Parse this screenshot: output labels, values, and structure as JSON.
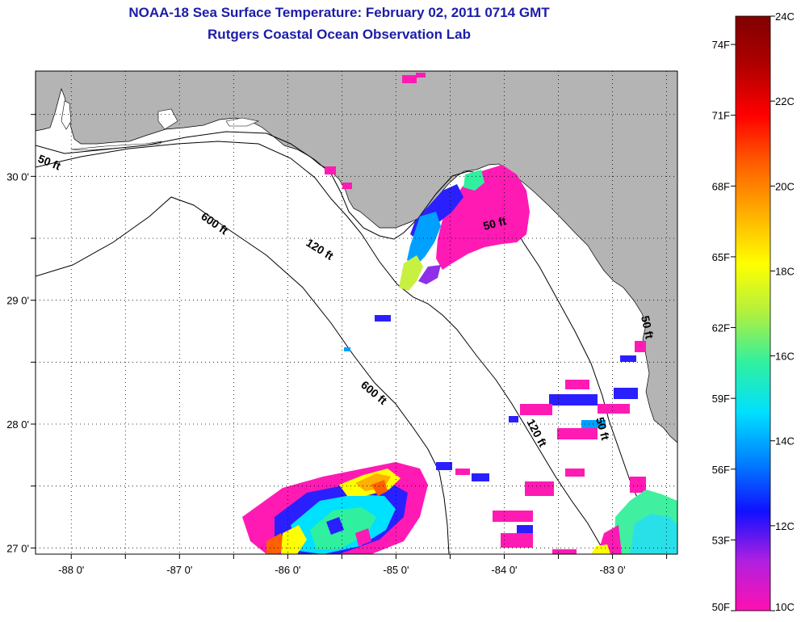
{
  "header": {
    "title": "NOAA-18 Sea Surface Temperature:  February 02, 2011 0714 GMT",
    "subtitle": "Rutgers Coastal Ocean Observation Lab"
  },
  "map": {
    "lon_range": [
      -88.33,
      -82.4
    ],
    "lat_range": [
      26.95,
      30.85
    ],
    "lon_ticks": [
      {
        "value": -88,
        "label": "-88 0'"
      },
      {
        "value": -87,
        "label": "-87 0'"
      },
      {
        "value": -86,
        "label": "-86 0'"
      },
      {
        "value": -85,
        "label": "-85 0'"
      },
      {
        "value": -84,
        "label": "-84 0'"
      },
      {
        "value": -83,
        "label": "-83 0'"
      }
    ],
    "lat_ticks": [
      {
        "value": 30,
        "label": "30 0'"
      },
      {
        "value": 29,
        "label": "29 0'"
      },
      {
        "value": 28,
        "label": "28 0'"
      },
      {
        "value": 27,
        "label": "27 0'"
      }
    ],
    "grid": "dotted",
    "land_color": "#b4b4b4",
    "depth_labels": [
      "50 ft",
      "600 ft",
      "120 ft",
      "50 ft",
      "600 ft",
      "120 ft",
      "50 ft",
      "50 ft"
    ]
  },
  "colorbar": {
    "min_c": 10,
    "max_c": 24,
    "celsius_labels": [
      "24C",
      "22C",
      "20C",
      "18C",
      "16C",
      "14C",
      "12C",
      "10C"
    ],
    "fahrenheit_labels": [
      "74F",
      "71F",
      "68F",
      "65F",
      "62F",
      "59F",
      "56F",
      "53F",
      "50F"
    ],
    "colors": [
      "#ff10b0",
      "#b020e0",
      "#1010ff",
      "#0080ff",
      "#00e0ff",
      "#30f0a0",
      "#b0f040",
      "#ffff00",
      "#ffb000",
      "#ff6000",
      "#ff0000",
      "#b00000",
      "#800000"
    ]
  }
}
